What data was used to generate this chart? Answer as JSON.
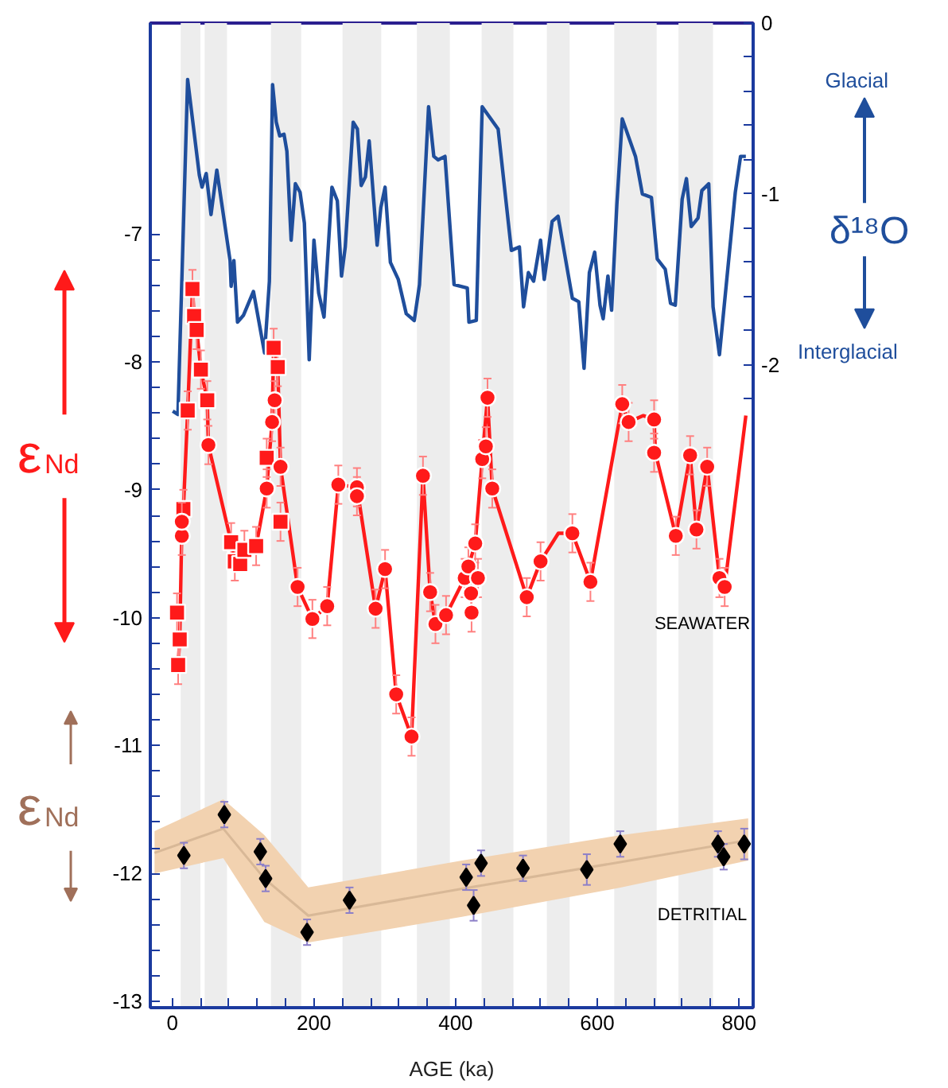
{
  "chart_data": {
    "type": "line",
    "xlabel": "AGE (ka)",
    "ylabel": "ε$_{Nd}$",
    "y2label": "δ¹⁸O",
    "xlim": [
      -31,
      820
    ],
    "ylim": [
      -13.05,
      -5.35
    ],
    "y2lim": [
      -5.76,
      0
    ],
    "xticks": [
      0,
      {
        "value": 40,
        "label": null
      },
      {
        "value": 80,
        "label": null
      },
      {
        "value": 120,
        "label": null
      },
      {
        "value": 160,
        "label": null
      },
      200,
      {
        "value": 240,
        "label": null
      },
      {
        "value": 280,
        "label": null
      },
      {
        "value": 320,
        "label": null
      },
      {
        "value": 360,
        "label": null
      },
      400,
      {
        "value": 440,
        "label": null
      },
      {
        "value": 480,
        "label": null
      },
      {
        "value": 520,
        "label": null
      },
      {
        "value": 560,
        "label": null
      },
      600,
      {
        "value": 640,
        "label": null
      },
      {
        "value": 680,
        "label": null
      },
      {
        "value": 720,
        "label": null
      },
      {
        "value": 760,
        "label": null
      },
      800
    ],
    "yticks": [
      -7,
      {
        "value": -7.2,
        "label": null
      },
      {
        "value": -7.4,
        "label": null
      },
      {
        "value": -7.6,
        "label": null
      },
      {
        "value": -7.8,
        "label": null
      },
      -8,
      {
        "value": -8.2,
        "label": null
      },
      {
        "value": -8.4,
        "label": null
      },
      {
        "value": -8.6,
        "label": null
      },
      {
        "value": -8.8,
        "label": null
      },
      -9,
      {
        "value": -9.2,
        "label": null
      },
      {
        "value": -9.4,
        "label": null
      },
      {
        "value": -9.6,
        "label": null
      },
      {
        "value": -9.8,
        "label": null
      },
      -10,
      {
        "value": -10.2,
        "label": null
      },
      {
        "value": -10.4,
        "label": null
      },
      {
        "value": -10.6,
        "label": null
      },
      {
        "value": -10.8,
        "label": null
      },
      -11,
      {
        "value": -11.2,
        "label": null
      },
      {
        "value": -11.4,
        "label": null
      },
      {
        "value": -11.6,
        "label": null
      },
      {
        "value": -11.8,
        "label": null
      },
      -12,
      {
        "value": -12.2,
        "label": null
      },
      {
        "value": -12.4,
        "label": null
      },
      {
        "value": -12.6,
        "label": null
      },
      {
        "value": -12.8,
        "label": null
      },
      -13
    ],
    "y2ticks": [
      0,
      {
        "value": -0.2,
        "label": null
      },
      {
        "value": -0.4,
        "label": null
      },
      {
        "value": -0.6,
        "label": null
      },
      {
        "value": -0.8,
        "label": null
      },
      -1,
      {
        "value": -1.2,
        "label": null
      },
      {
        "value": -1.4,
        "label": null
      },
      {
        "value": -1.6,
        "label": null
      },
      {
        "value": -1.8,
        "label": null
      },
      -2,
      {
        "value": -2.2,
        "label": null
      }
    ],
    "grid": false,
    "bands": [
      {
        "axis": "x",
        "from": 11.9,
        "to": 39.7,
        "color": "#ededed"
      },
      {
        "axis": "x",
        "from": 45.7,
        "to": 77.2,
        "color": "#ededed"
      },
      {
        "axis": "x",
        "from": 139.3,
        "to": 182,
        "color": "#ededed"
      },
      {
        "axis": "x",
        "from": 240.4,
        "to": 295,
        "color": "#ededed"
      },
      {
        "axis": "x",
        "from": 345.3,
        "to": 391.8,
        "color": "#ededed"
      },
      {
        "axis": "x",
        "from": 436.7,
        "to": 481.6,
        "color": "#ededed"
      },
      {
        "axis": "x",
        "from": 528.8,
        "to": 561,
        "color": "#ededed"
      },
      {
        "axis": "x",
        "from": 623.9,
        "to": 683.8,
        "color": "#ededed"
      },
      {
        "axis": "x",
        "from": 714.6,
        "to": 763.3,
        "color": "#ededed"
      }
    ],
    "series": [
      {
        "type": "line",
        "axis": "y2",
        "color": "#1f4e9c",
        "marker": "none",
        "x": [
          0.7,
          8,
          21.7,
          38.2,
          42,
          47.9,
          54.7,
          62.9,
          81.6,
          83.1,
          87,
          92.1,
          100.4,
          114.6,
          130.3,
          137.1,
          141.6,
          146.8,
          151.7,
          157.7,
          161.8,
          167.8,
          173.8,
          180.4,
          186.5,
          193.3,
          200,
          206.7,
          214.2,
          225.4,
          233,
          238.9,
          244.2,
          255.4,
          261.3,
          266.7,
          272.6,
          278,
          289.2,
          294.4,
          300.4,
          307.9,
          319.1,
          330.3,
          341.6,
          349,
          361.8,
          369.2,
          375.3,
          385,
          397.8,
          416.5,
          418.8,
          429.2,
          437.5,
          460,
          478.7,
          490,
          495.9,
          502.7,
          510.1,
          519.9,
          525.1,
          536.3,
          544.6,
          564.8,
          573.8,
          581.3,
          588.8,
          596.3,
          603.8,
          608.3,
          615,
          620.2,
          627.6,
          635.2,
          653.9,
          663.6,
          676.4,
          684.6,
          695.9,
          703.4,
          710.1,
          719.8,
          725.8,
          732.6,
          742.2,
          747.6,
          757.3,
          763.4,
          772.4,
          794.8,
          802.2,
          809.7
        ],
        "values": [
          -2.27,
          -2.29,
          -0.33,
          -0.89,
          -0.96,
          -0.88,
          -1.12,
          -0.86,
          -1.39,
          -1.54,
          -1.39,
          -1.75,
          -1.71,
          -1.57,
          -1.93,
          -1.51,
          -0.36,
          -0.58,
          -0.66,
          -0.65,
          -0.75,
          -1.27,
          -0.94,
          -0.99,
          -1.17,
          -1.97,
          -1.27,
          -1.58,
          -1.72,
          -0.96,
          -1.04,
          -1.48,
          -1.31,
          -0.58,
          -0.62,
          -0.95,
          -0.9,
          -0.69,
          -1.3,
          -1.08,
          -0.96,
          -1.4,
          -1.5,
          -1.7,
          -1.74,
          -1.53,
          -0.49,
          -0.78,
          -0.8,
          -0.78,
          -1.53,
          -1.55,
          -1.75,
          -1.74,
          -0.49,
          -0.62,
          -1.33,
          -1.31,
          -1.66,
          -1.46,
          -1.51,
          -1.27,
          -1.5,
          -1.16,
          -1.13,
          -1.61,
          -1.63,
          -2.02,
          -1.46,
          -1.34,
          -1.65,
          -1.73,
          -1.48,
          -1.68,
          -1.06,
          -0.56,
          -0.78,
          -1.0,
          -1.02,
          -1.38,
          -1.44,
          -1.64,
          -1.65,
          -1.03,
          -0.91,
          -1.19,
          -1.14,
          -0.98,
          -0.94,
          -1.66,
          -1.94,
          -0.99,
          -0.78,
          -0.78
        ]
      },
      {
        "type": "line",
        "color": "#f2d2b0",
        "x": [
          -25,
          72,
          130,
          192,
          409,
          634,
          813
        ],
        "values": [
          -11.84,
          -11.65,
          -12.04,
          -12.33,
          -12.12,
          -11.91,
          -11.74
        ],
        "lower": [
          -12.0,
          -11.88,
          -12.38,
          -12.54,
          -12.34,
          -12.11,
          -11.9
        ],
        "upper": [
          -11.67,
          -11.42,
          -11.7,
          -12.11,
          -11.9,
          -11.7,
          -11.57
        ]
      },
      {
        "type": "line",
        "color": "#ff1a1a",
        "marker": "none",
        "x": [
          8.3,
          10.5,
          13.5,
          15.7,
          21.8,
          28.5,
          30.8,
          34.4,
          40.4,
          49.4,
          51,
          83.1,
          88.3,
          95.9,
          101.8,
          118.4,
          133.3,
          140.9,
          143.1,
          148.9,
          152.8,
          176.9,
          197.8,
          218.7,
          234.4,
          260.7,
          287,
          300.4,
          316.1,
          337.8,
          353.9,
          364,
          371.5,
          386.5,
          412.8,
          418,
          427.7,
          437.5,
          445,
          451.7,
          500.4,
          519.9,
          545,
          564.8,
          590.3,
          635.2,
          644.2,
          665,
          680.2,
          682,
          710.8,
          731,
          740,
          755.1,
          772.4,
          779.8,
          809.7
        ],
        "values": [
          -10.37,
          -10.17,
          -9.3,
          -9.15,
          -8.38,
          -7.43,
          -7.64,
          -7.75,
          -8.06,
          -8.3,
          -8.65,
          -9.41,
          -9.56,
          -9.58,
          -9.47,
          -9.44,
          -8.99,
          -8.47,
          -7.89,
          -8.04,
          -8.82,
          -9.76,
          -10.01,
          -9.91,
          -8.96,
          -8.98,
          -9.93,
          -9.62,
          -10.6,
          -10.93,
          -8.89,
          -9.8,
          -10.05,
          -9.98,
          -9.69,
          -9.6,
          -9.42,
          -8.76,
          -8.28,
          -8.99,
          -9.84,
          -9.56,
          -9.34,
          -9.34,
          -9.72,
          -8.33,
          -8.47,
          -8.42,
          -8.45,
          -8.71,
          -9.36,
          -8.73,
          -9.31,
          -8.82,
          -9.69,
          -9.76,
          -8.42
        ]
      },
      {
        "type": "scatter",
        "color": "#ff1a1a",
        "marker": "square",
        "x": [
          8.3,
          10.5,
          6.7,
          15.7,
          21.8,
          28.5,
          30.8,
          34.4,
          40.4,
          49.4,
          83.1,
          88.3,
          95.9,
          101.8,
          118.4,
          133.3,
          143.1,
          148.9,
          152.8
        ],
        "values": [
          -10.37,
          -10.17,
          -9.96,
          -9.15,
          -8.38,
          -7.43,
          -7.64,
          -7.75,
          -8.06,
          -8.3,
          -9.41,
          -9.56,
          -9.58,
          -9.47,
          -9.44,
          -8.75,
          -7.89,
          -8.04,
          -9.25
        ],
        "errors": [
          0.15,
          0.15,
          0.15,
          0.15,
          0.15,
          0.15,
          0.15,
          0.15,
          0.15,
          0.15,
          0.15,
          0.15,
          null,
          0.15,
          0.15,
          0.15,
          0.15,
          0.15,
          0.15
        ]
      },
      {
        "type": "scatter",
        "color": "#ff1a1a",
        "marker": "circle",
        "x": [
          13.5,
          13.5,
          51,
          133.3,
          140.9,
          144.5,
          152.8,
          176.9,
          197.8,
          218.7,
          234.4,
          260.7,
          260.7,
          287,
          300.4,
          316.1,
          337.8,
          353.9,
          364,
          371.5,
          386.5,
          412.8,
          418,
          421.8,
          422.5,
          427.7,
          431.5,
          437.5,
          442.7,
          445,
          451.7,
          500.4,
          519.9,
          564.8,
          590.3,
          635.2,
          644.2,
          680.2,
          680.2,
          710.8,
          731,
          740,
          755.1,
          772.4,
          779.8
        ],
        "values": [
          -9.36,
          -9.25,
          -8.65,
          -8.99,
          -8.47,
          -8.3,
          -8.82,
          -9.76,
          -10.01,
          -9.91,
          -8.96,
          -8.98,
          -9.05,
          -9.93,
          -9.62,
          -10.6,
          -10.93,
          -8.89,
          -9.8,
          -10.05,
          -9.98,
          -9.69,
          -9.6,
          -9.81,
          -9.96,
          -9.42,
          -9.69,
          -8.76,
          -8.66,
          -8.28,
          -8.99,
          -9.84,
          -9.56,
          -9.34,
          -9.72,
          -8.33,
          -8.47,
          -8.45,
          -8.71,
          -9.36,
          -8.73,
          -9.31,
          -8.82,
          -9.69,
          -9.76
        ],
        "errors": [
          0.15,
          0.15,
          0.15,
          0.15,
          0.15,
          0.15,
          0.15,
          0.15,
          0.15,
          0.15,
          0.15,
          0.15,
          0.15,
          0.15,
          0.15,
          0.15,
          0.15,
          0.15,
          0.15,
          0.15,
          0.15,
          0.15,
          0.15,
          0.15,
          0.15,
          0.15,
          0.15,
          0.15,
          0.15,
          0.15,
          0.15,
          0.15,
          0.15,
          0.15,
          0.15,
          0.15,
          0.15,
          0.15,
          0.15,
          0.15,
          0.15,
          0.15,
          0.15,
          0.15,
          0.15
        ]
      },
      {
        "type": "scatter",
        "color": "#000000",
        "marker": "diamond",
        "x": [
          16.4,
          73.5,
          124.3,
          131.8,
          190.3,
          250.2,
          414.9,
          425.4,
          435.9,
          495.1,
          585.2,
          632.4,
          770.3,
          778.4,
          807.4
        ],
        "values": [
          -11.86,
          -11.54,
          -11.83,
          -12.04,
          -12.46,
          -12.21,
          -12.03,
          -12.25,
          -11.92,
          -11.96,
          -11.97,
          -11.77,
          -11.77,
          -11.87,
          -11.77
        ],
        "errors": [
          0.1,
          0.1,
          0.1,
          0.1,
          0.1,
          0.1,
          0.1,
          0.12,
          0.1,
          0.1,
          0.12,
          0.1,
          0.1,
          0.1,
          0.12
        ]
      }
    ],
    "annotations": [
      "SEAWATER",
      "DETRITIAL",
      "ε$_{Nd}$",
      "Glacial",
      "Interglacial"
    ]
  }
}
